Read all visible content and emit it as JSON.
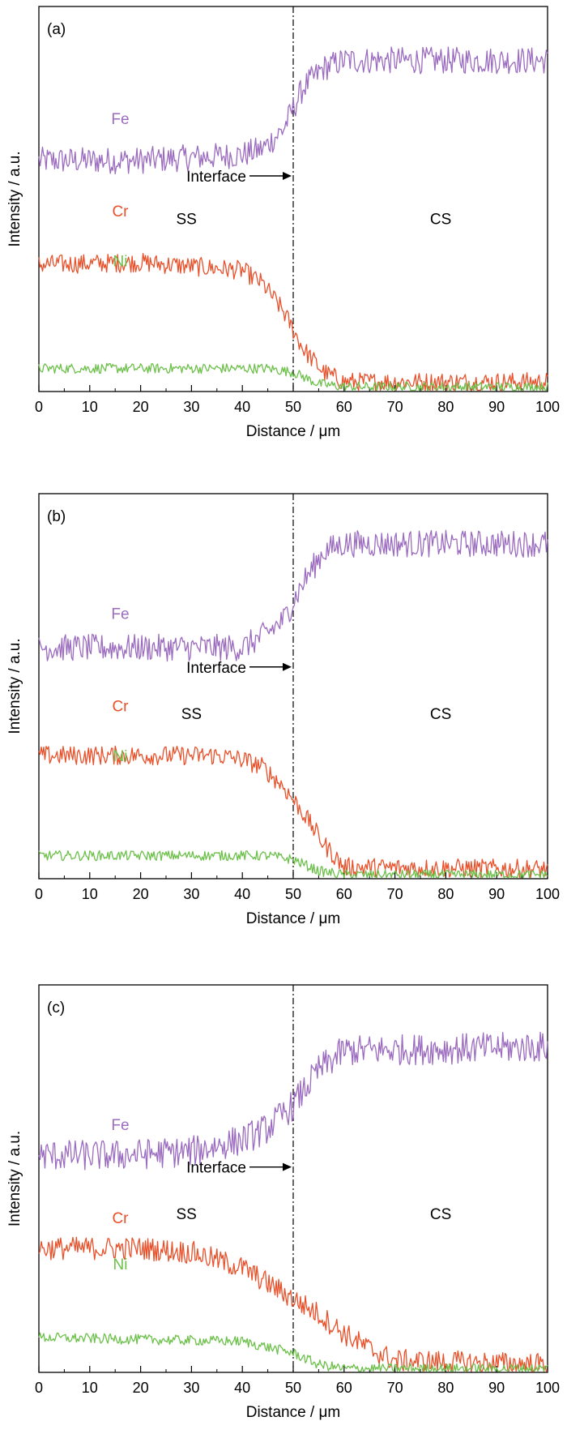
{
  "figure": {
    "panels": [
      "(a)",
      "(b)",
      "(c)"
    ]
  },
  "colors": {
    "Fe": "#9b6bbf",
    "Cr": "#e8502a",
    "Ni": "#6cc04a",
    "axis": "#000000",
    "interface_line": "#000000"
  },
  "chart_data": [
    {
      "type": "line",
      "panel_label": "(a)",
      "xlabel": "Distance / μm",
      "ylabel": "Intensity / a.u.",
      "xlim": [
        0,
        100
      ],
      "ylim": [
        0,
        100
      ],
      "xticks": [
        0,
        10,
        20,
        30,
        40,
        50,
        60,
        70,
        80,
        90,
        100
      ],
      "interface_x": 50,
      "annotations": [
        {
          "text": "Interface",
          "arrow_to_x": 50,
          "y": 56
        },
        {
          "text": "SS",
          "x": 29,
          "y": 45
        },
        {
          "text": "CS",
          "x": 79,
          "y": 45
        }
      ],
      "series": [
        {
          "name": "Fe",
          "label_x": 16,
          "label_y": 71,
          "noise": 3.5,
          "x": [
            0,
            20,
            40,
            44,
            48,
            52,
            56,
            60,
            100
          ],
          "values": [
            60,
            60,
            61.5,
            63,
            68,
            79,
            84,
            86,
            86
          ]
        },
        {
          "name": "Cr",
          "label_x": 16,
          "label_y": 47,
          "noise": 2.5,
          "x": [
            0,
            20,
            40,
            44,
            48,
            52,
            56,
            60,
            100
          ],
          "values": [
            33,
            33.5,
            31.5,
            28,
            21,
            11,
            5,
            2.5,
            2.5
          ]
        },
        {
          "name": "Ni",
          "label_x": 16,
          "label_y": 34,
          "noise": 1.3,
          "x": [
            0,
            45,
            50,
            55,
            60,
            100
          ],
          "values": [
            6,
            6,
            5,
            2,
            1.2,
            1.2
          ]
        }
      ]
    },
    {
      "type": "line",
      "panel_label": "(b)",
      "xlabel": "Distance / μm",
      "ylabel": "Intensity / a.u.",
      "xlim": [
        0,
        100
      ],
      "ylim": [
        0,
        100
      ],
      "xticks": [
        0,
        10,
        20,
        30,
        40,
        50,
        60,
        70,
        80,
        90,
        100
      ],
      "interface_x": 50,
      "annotations": [
        {
          "text": "Interface",
          "arrow_to_x": 50,
          "y": 55
        },
        {
          "text": "SS",
          "x": 30,
          "y": 43
        },
        {
          "text": "CS",
          "x": 79,
          "y": 43
        }
      ],
      "series": [
        {
          "name": "Fe",
          "label_x": 16,
          "label_y": 69,
          "noise": 3.5,
          "x": [
            0,
            20,
            40,
            44,
            48,
            52,
            56,
            60,
            100
          ],
          "values": [
            60,
            60,
            60,
            63,
            67,
            77,
            85,
            87,
            87
          ]
        },
        {
          "name": "Cr",
          "label_x": 16,
          "label_y": 45,
          "noise": 2.5,
          "x": [
            0,
            20,
            35,
            40,
            44,
            48,
            52,
            56,
            60,
            100
          ],
          "values": [
            32,
            32,
            32,
            31,
            29,
            24,
            17,
            9,
            3,
            2.5
          ]
        },
        {
          "name": "Ni",
          "label_x": 16,
          "label_y": 32,
          "noise": 1.3,
          "x": [
            0,
            45,
            50,
            55,
            60,
            100
          ],
          "values": [
            6,
            6,
            5,
            2,
            1,
            1
          ]
        }
      ]
    },
    {
      "type": "line",
      "panel_label": "(c)",
      "xlabel": "Distance / μm",
      "ylabel": "Intensity / a.u.",
      "xlim": [
        0,
        100
      ],
      "ylim": [
        0,
        100
      ],
      "xticks": [
        0,
        10,
        20,
        30,
        40,
        50,
        60,
        70,
        80,
        90,
        100
      ],
      "interface_x": 50,
      "annotations": [
        {
          "text": "Interface",
          "arrow_to_x": 50,
          "y": 53
        },
        {
          "text": "SS",
          "x": 29,
          "y": 41
        },
        {
          "text": "CS",
          "x": 79,
          "y": 41
        }
      ],
      "series": [
        {
          "name": "Fe",
          "label_x": 16,
          "label_y": 64,
          "noise": 4,
          "x": [
            0,
            15,
            30,
            40,
            45,
            50,
            55,
            60,
            100
          ],
          "values": [
            56,
            56,
            57,
            60,
            63,
            69,
            78,
            83,
            84
          ]
        },
        {
          "name": "Cr",
          "label_x": 16,
          "label_y": 40,
          "noise": 3,
          "x": [
            0,
            20,
            30,
            40,
            45,
            50,
            55,
            60,
            65,
            70,
            100
          ],
          "values": [
            32,
            32,
            31,
            27,
            23,
            19,
            15,
            10,
            6,
            3,
            2
          ]
        },
        {
          "name": "Ni",
          "label_x": 16,
          "label_y": 28,
          "noise": 1.3,
          "x": [
            0,
            40,
            50,
            55,
            60,
            100
          ],
          "values": [
            9,
            8,
            5,
            2,
            1,
            1
          ]
        }
      ]
    }
  ]
}
